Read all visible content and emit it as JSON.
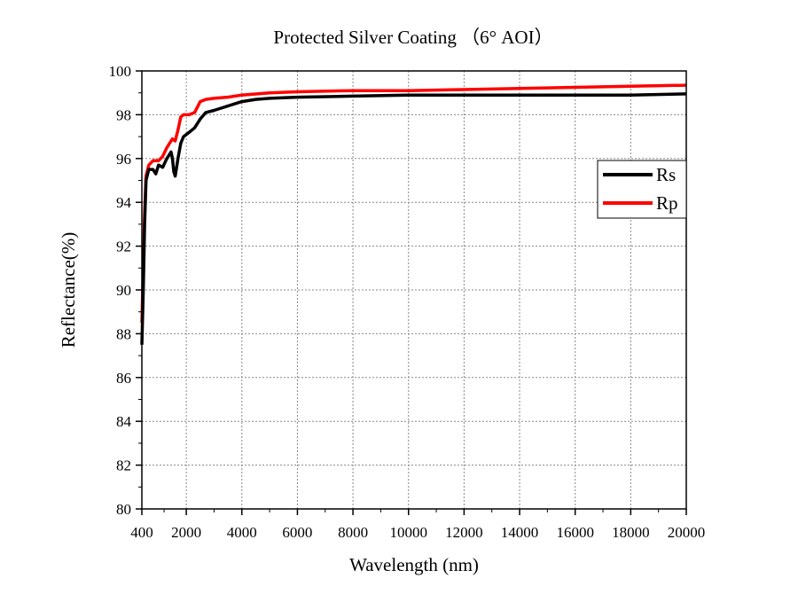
{
  "chart_data": {
    "type": "line",
    "title": "Protected Silver Coating （6° AOI）",
    "xlabel": "Wavelength (nm)",
    "ylabel": "Reflectance(%)",
    "xlim": [
      400,
      20000
    ],
    "ylim": [
      80,
      100
    ],
    "x_ticks": [
      400,
      2000,
      4000,
      6000,
      8000,
      10000,
      12000,
      14000,
      16000,
      18000,
      20000
    ],
    "x_tick_labels": [
      "400",
      "2000",
      "4000",
      "6000",
      "8000",
      "10000",
      "12000",
      "14000",
      "16000",
      "18000",
      "20000"
    ],
    "y_ticks": [
      80,
      82,
      84,
      86,
      88,
      90,
      92,
      94,
      96,
      98,
      100
    ],
    "y_tick_labels": [
      "80",
      "82",
      "84",
      "86",
      "88",
      "90",
      "92",
      "94",
      "96",
      "98",
      "100"
    ],
    "grid": true,
    "legend_position": "right",
    "series": [
      {
        "name": "Rs",
        "color": "#000000",
        "points": [
          [
            400,
            87.5
          ],
          [
            450,
            90
          ],
          [
            500,
            93
          ],
          [
            550,
            95
          ],
          [
            650,
            95.5
          ],
          [
            800,
            95.5
          ],
          [
            900,
            95.3
          ],
          [
            1000,
            95.7
          ],
          [
            1150,
            95.6
          ],
          [
            1300,
            96
          ],
          [
            1450,
            96.3
          ],
          [
            1500,
            96
          ],
          [
            1550,
            95.4
          ],
          [
            1600,
            95.2
          ],
          [
            1650,
            95.6
          ],
          [
            1700,
            96
          ],
          [
            1800,
            96.7
          ],
          [
            1900,
            97
          ],
          [
            2100,
            97.2
          ],
          [
            2300,
            97.4
          ],
          [
            2500,
            97.8
          ],
          [
            2700,
            98.1
          ],
          [
            3000,
            98.2
          ],
          [
            3500,
            98.4
          ],
          [
            4000,
            98.6
          ],
          [
            4500,
            98.7
          ],
          [
            5000,
            98.75
          ],
          [
            6000,
            98.8
          ],
          [
            8000,
            98.85
          ],
          [
            10000,
            98.9
          ],
          [
            14000,
            98.9
          ],
          [
            18000,
            98.9
          ],
          [
            20000,
            98.95
          ]
        ]
      },
      {
        "name": "Rp",
        "color": "#ff0000",
        "points": [
          [
            400,
            88.5
          ],
          [
            450,
            91
          ],
          [
            500,
            93.5
          ],
          [
            550,
            95.2
          ],
          [
            650,
            95.7
          ],
          [
            800,
            95.9
          ],
          [
            1000,
            95.9
          ],
          [
            1150,
            96.1
          ],
          [
            1300,
            96.5
          ],
          [
            1450,
            96.8
          ],
          [
            1500,
            96.9
          ],
          [
            1600,
            96.8
          ],
          [
            1700,
            97.3
          ],
          [
            1800,
            97.9
          ],
          [
            1900,
            98.0
          ],
          [
            2100,
            98.0
          ],
          [
            2300,
            98.1
          ],
          [
            2500,
            98.6
          ],
          [
            2700,
            98.7
          ],
          [
            3000,
            98.75
          ],
          [
            3500,
            98.8
          ],
          [
            4000,
            98.9
          ],
          [
            5000,
            99.0
          ],
          [
            6000,
            99.05
          ],
          [
            8000,
            99.1
          ],
          [
            10000,
            99.1
          ],
          [
            12000,
            99.15
          ],
          [
            14000,
            99.2
          ],
          [
            16000,
            99.25
          ],
          [
            18000,
            99.3
          ],
          [
            20000,
            99.35
          ]
        ]
      }
    ]
  }
}
